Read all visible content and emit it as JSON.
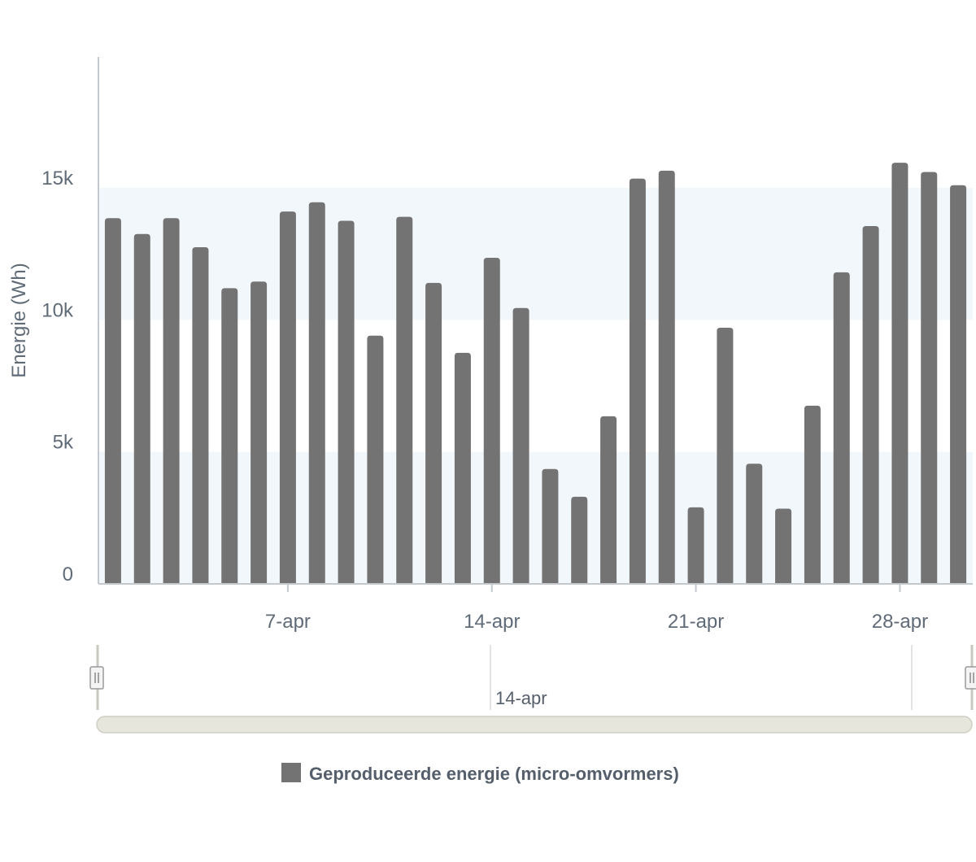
{
  "chart_data": {
    "type": "bar",
    "ylabel": "Energie (Wh)",
    "xlabel": "",
    "ylim": [
      0,
      20000
    ],
    "y_ticks": [
      "0",
      "5k",
      "10k",
      "15k"
    ],
    "x_ticks": [
      "7-apr",
      "14-apr",
      "21-apr",
      "28-apr"
    ],
    "x_start_date": "1-apr",
    "grid": "alternating horizontal bands",
    "series": [
      {
        "name": "Geproduceerde energie (micro-omvormers)",
        "color": "#737373",
        "values": [
          13850,
          13250,
          13850,
          12750,
          11200,
          11450,
          14100,
          14450,
          13750,
          9400,
          13900,
          11400,
          8750,
          12350,
          10450,
          4350,
          3300,
          6350,
          15350,
          15650,
          2900,
          9700,
          4550,
          2850,
          6750,
          11800,
          13550,
          15950,
          15600,
          15100
        ]
      }
    ]
  },
  "navigator": {
    "label": "14-apr",
    "handle_glyph": "||"
  },
  "legend": {
    "label": "Geproduceerde energie (micro-omvormers)",
    "position": "bottom-center"
  },
  "colors": {
    "bar": "#737373",
    "band": "#f2f7fb",
    "axis": "#c4c9d0",
    "scrollbar": "#e6e6dc"
  }
}
